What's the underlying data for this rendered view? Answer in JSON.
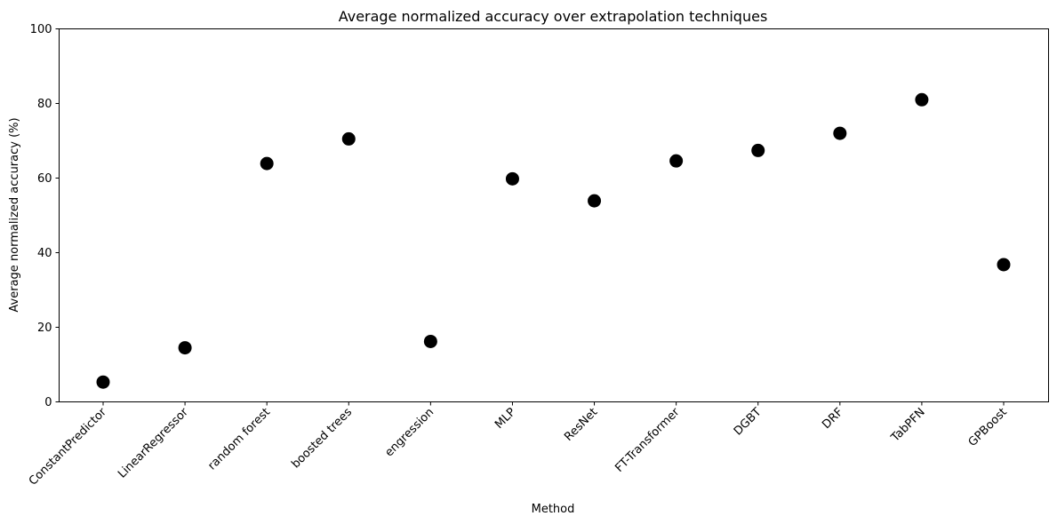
{
  "chart_data": {
    "type": "scatter",
    "title": "Average normalized accuracy over extrapolation techniques",
    "xlabel": "Method",
    "ylabel": "Average normalized accuracy (%)",
    "ylim": [
      0,
      100
    ],
    "yticks": [
      0,
      20,
      40,
      60,
      80,
      100
    ],
    "grid": false,
    "categories": [
      "ConstantPredictor",
      "LinearRegressor",
      "random forest",
      "boosted trees",
      "engression",
      "MLP",
      "ResNet",
      "FT-Transformer",
      "DGBT",
      "DRF",
      "TabPFN",
      "GPBoost"
    ],
    "values": [
      5.3,
      14.5,
      63.9,
      70.5,
      16.2,
      59.8,
      53.9,
      64.6,
      67.4,
      72.0,
      81.0,
      36.8
    ],
    "marker_color": "#000000"
  }
}
